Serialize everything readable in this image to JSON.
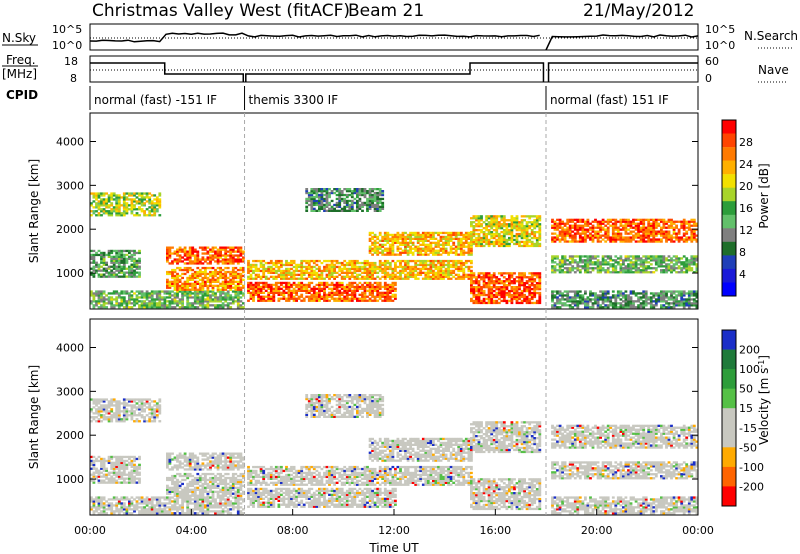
{
  "header": {
    "station": "Christmas Valley West (fitACF)",
    "beam": "Beam 21",
    "date": "21/May/2012"
  },
  "noise_panel": {
    "left_label": "N.Sky",
    "right_label": "N.Search",
    "left_ticks": [
      "10^5",
      "10^0"
    ],
    "right_ticks": [
      "10^5",
      "10^0"
    ]
  },
  "freq_panel": {
    "left_label_line1": "Freq.",
    "left_label_line2": "[MHz]",
    "right_label": "Nave",
    "left_ticks": [
      "18",
      "8"
    ],
    "right_ticks": [
      "60",
      "0"
    ]
  },
  "cpid": {
    "label": "CPID",
    "segments": [
      {
        "text": "normal (fast) -151 IF",
        "start_h": 0.0,
        "end_h": 6.1
      },
      {
        "text": "themis 3300 IF",
        "start_h": 6.1,
        "end_h": 18.0
      },
      {
        "text": "normal (fast) 151 IF",
        "start_h": 18.0,
        "end_h": 24.0
      }
    ]
  },
  "power_colorbar": {
    "label": "Power [dB]",
    "ticks": [
      "28",
      "24",
      "20",
      "16",
      "12",
      "8",
      "4"
    ],
    "colors": [
      "#ff0000",
      "#ff4400",
      "#ff7a00",
      "#ffb000",
      "#f2e000",
      "#a8d42a",
      "#2c9d3a",
      "#62c06a",
      "#7f7f7f",
      "#1e6e2a",
      "#1f3fb8",
      "#1a1ad8",
      "#0000ff"
    ]
  },
  "velocity_colorbar": {
    "label": "Velocity [m s",
    "label_sup": "-1",
    "label_end": "]",
    "ticks": [
      "200",
      "100",
      "50",
      "15",
      "-15",
      "-50",
      "-100",
      "-200"
    ],
    "colors": [
      "#1a2ec8",
      "#1f7a3a",
      "#2e9d3a",
      "#55c046",
      "#c8c8c0",
      "#c8c8c0",
      "#ffaa00",
      "#ff6400",
      "#ff0000"
    ]
  },
  "chart_data": [
    {
      "type": "heatmap",
      "quantity": "Power",
      "unit": "dB",
      "xlabel": "Time UT",
      "ylabel": "Slant Range [km]",
      "xlim_h": [
        0,
        24
      ],
      "ylim": [
        180,
        4650
      ],
      "y_ticks": [
        1000,
        2000,
        3000,
        4000
      ],
      "data_gaps_h": [
        [
          6.05,
          6.15
        ],
        [
          17.9,
          18.1
        ]
      ],
      "echo_bands": [
        {
          "t0": 0.0,
          "t1": 2.8,
          "r0": 2300,
          "r1": 2800,
          "level": 18
        },
        {
          "t0": 0.0,
          "t1": 2.0,
          "r0": 900,
          "r1": 1500,
          "level": 12
        },
        {
          "t0": 0.0,
          "t1": 6.0,
          "r0": 200,
          "r1": 600,
          "level": 14
        },
        {
          "t0": 3.0,
          "t1": 6.0,
          "r0": 1200,
          "r1": 1600,
          "level": 26
        },
        {
          "t0": 3.0,
          "t1": 6.0,
          "r0": 600,
          "r1": 1100,
          "level": 24
        },
        {
          "t0": 6.2,
          "t1": 15.0,
          "r0": 850,
          "r1": 1300,
          "level": 22
        },
        {
          "t0": 6.2,
          "t1": 12.0,
          "r0": 350,
          "r1": 800,
          "level": 26
        },
        {
          "t0": 8.5,
          "t1": 11.5,
          "r0": 2400,
          "r1": 2900,
          "level": 10
        },
        {
          "t0": 11.0,
          "t1": 15.0,
          "r0": 1400,
          "r1": 1900,
          "level": 22
        },
        {
          "t0": 15.0,
          "t1": 17.8,
          "r0": 300,
          "r1": 1000,
          "level": 27
        },
        {
          "t0": 15.0,
          "t1": 17.8,
          "r0": 1600,
          "r1": 2300,
          "level": 20
        },
        {
          "t0": 18.2,
          "t1": 24.0,
          "r0": 1700,
          "r1": 2200,
          "level": 26
        },
        {
          "t0": 18.2,
          "t1": 24.0,
          "r0": 1000,
          "r1": 1400,
          "level": 14
        },
        {
          "t0": 18.2,
          "t1": 24.0,
          "r0": 200,
          "r1": 600,
          "level": 10
        }
      ]
    },
    {
      "type": "heatmap",
      "quantity": "Velocity",
      "unit": "m s-1",
      "xlabel": "Time UT",
      "ylabel": "Slant Range [km]",
      "xlim_h": [
        0,
        24
      ],
      "ylim": [
        180,
        4650
      ],
      "y_ticks": [
        1000,
        2000,
        3000,
        4000
      ],
      "x_ticks": [
        "00:00",
        "04:00",
        "08:00",
        "12:00",
        "16:00",
        "20:00",
        "00:00"
      ],
      "dominant_range": [
        -15,
        15
      ]
    }
  ]
}
